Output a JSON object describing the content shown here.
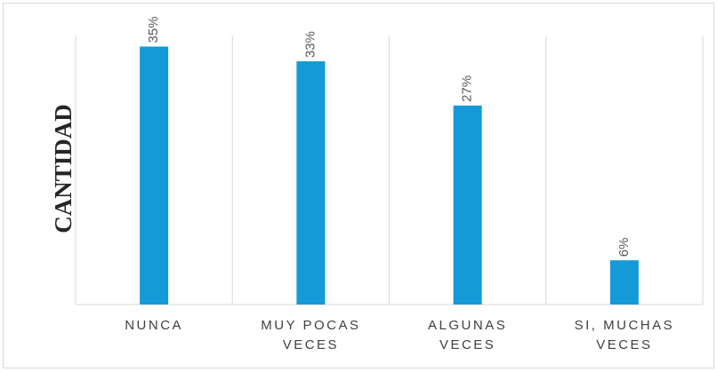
{
  "chart_data": {
    "type": "bar",
    "y_label": "CANTIDAD",
    "categories": [
      "NUNCA",
      "MUY POCAS VECES",
      "ALGUNAS VECES",
      "SI, MUCHAS VECES"
    ],
    "values": [
      35,
      33,
      27,
      6
    ],
    "value_labels": [
      "35%",
      "33%",
      "27%",
      "6%"
    ],
    "color": "#149ad6",
    "ylim": [
      0,
      36.5
    ]
  }
}
